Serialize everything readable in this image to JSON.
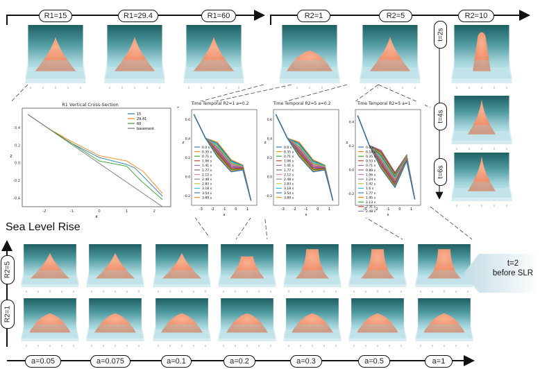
{
  "top_left_labels": [
    "R1=15",
    "R1=29.4",
    "R1=60"
  ],
  "top_right_labels": [
    "R2=1",
    "R2=5",
    "R2=10"
  ],
  "time_labels": [
    "t=2s",
    "t=4s",
    "t=6s"
  ],
  "cross_section": {
    "title": "R1 Vertical Cross-Section",
    "legend": [
      "15",
      "29.41",
      "60",
      "basement"
    ],
    "xlabel": "x",
    "ylabel": "z",
    "xticks": [
      "-2",
      "-1",
      "0",
      "1",
      "2"
    ],
    "yticks": [
      "0.4",
      "0.2",
      "0.0",
      "-0.2",
      "-0.4"
    ]
  },
  "temporal_charts": [
    {
      "title": "Time Temporal R2=1 a=0.2",
      "legend": [
        "0.0 s",
        "0.35 s",
        "0.71 s",
        "1.06 s",
        "1.41 s",
        "1.77 s",
        "2.12 s",
        "2.48 s",
        "2.83 s",
        "3.18 s",
        "3.54 s",
        "3.89 s"
      ],
      "xticks": [
        "-3",
        "-2",
        "-1",
        "0",
        "1"
      ],
      "yticks": [
        "0.6",
        "0.4",
        "0.2",
        "0.0",
        "-0.2"
      ],
      "xlabel": "x",
      "ylabel": "z"
    },
    {
      "title": "Time Temporal R2=5 a=0.2",
      "legend": [
        "0.0 s",
        "0.35 s",
        "0.71 s",
        "1.06 s",
        "1.41 s",
        "1.77 s",
        "2.12 s",
        "2.48 s",
        "2.83 s",
        "3.18 s",
        "3.54 s",
        "3.89 s"
      ],
      "xticks": [
        "-3",
        "-2",
        "-1",
        "0",
        "1"
      ],
      "yticks": [
        "0.6",
        "0.4",
        "0.2",
        "0.0",
        "-0.2"
      ],
      "xlabel": "x",
      "ylabel": "z"
    },
    {
      "title": "Time Temporal R2=5 a=1",
      "legend": [
        "0.0 s",
        "0.18 s",
        "0.35 s",
        "0.53 s",
        "0.71 s",
        "0.89 s",
        "1.06 s",
        "1.24 s",
        "1.42 s",
        "1.6 s",
        "1.77 s",
        "1.95 s",
        "2.13 s",
        "2.31 s",
        "2.48 s"
      ],
      "xticks": [
        "-3",
        "-2",
        "-1",
        "0",
        "1"
      ],
      "yticks": [
        "0.4",
        "0.2",
        "0.0",
        "-0.2"
      ],
      "xlabel": "x",
      "ylabel": "z"
    }
  ],
  "slr_title": "Sea Level Rise",
  "row_labels": [
    "R2=5",
    "R2=1"
  ],
  "a_labels": [
    "a=0.05",
    "a=0.075",
    "a=0.1",
    "a=0.2",
    "a=0.3",
    "a=0.5",
    "a=1"
  ],
  "callout": {
    "line1": "t=2",
    "line2": "before SLR"
  },
  "colors": {
    "teal_dark": "#1f5f63",
    "teal_light": "#9fd3da",
    "peak": "#f6a07a",
    "s15": "#1f77b4",
    "s29": "#ff7f0e",
    "s60": "#2ca02c",
    "basement": "#777777"
  }
}
